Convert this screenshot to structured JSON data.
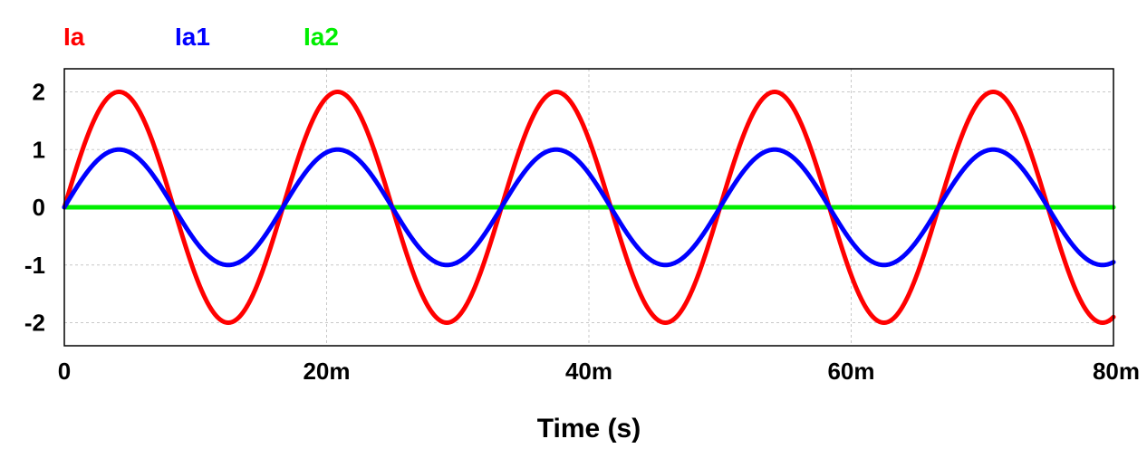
{
  "chart_data": {
    "type": "line",
    "title": "",
    "xlabel": "Time (s)",
    "ylabel": "",
    "xlim": [
      0,
      0.08
    ],
    "ylim": [
      -2.4,
      2.4
    ],
    "grid": true,
    "legend_placement": "top-left",
    "x_ticks": [
      {
        "value": 0,
        "label": "0"
      },
      {
        "value": 0.02,
        "label": "20m"
      },
      {
        "value": 0.04,
        "label": "40m"
      },
      {
        "value": 0.06,
        "label": "60m"
      },
      {
        "value": 0.08,
        "label": "80m"
      }
    ],
    "y_ticks": [
      {
        "value": 2,
        "label": "2"
      },
      {
        "value": 1,
        "label": "1"
      },
      {
        "value": 0,
        "label": "0"
      },
      {
        "value": -1,
        "label": "-1"
      },
      {
        "value": -2,
        "label": "-2"
      }
    ],
    "series": [
      {
        "name": "Ia",
        "color": "#ff0000",
        "amplitude": 2,
        "frequency_hz": 60,
        "phase_deg": 0
      },
      {
        "name": "Ia1",
        "color": "#0000ff",
        "amplitude": 1,
        "frequency_hz": 60,
        "phase_deg": 0
      },
      {
        "name": "Ia2",
        "color": "#00ee00",
        "amplitude": 0,
        "frequency_hz": 60,
        "phase_deg": 0
      }
    ]
  }
}
